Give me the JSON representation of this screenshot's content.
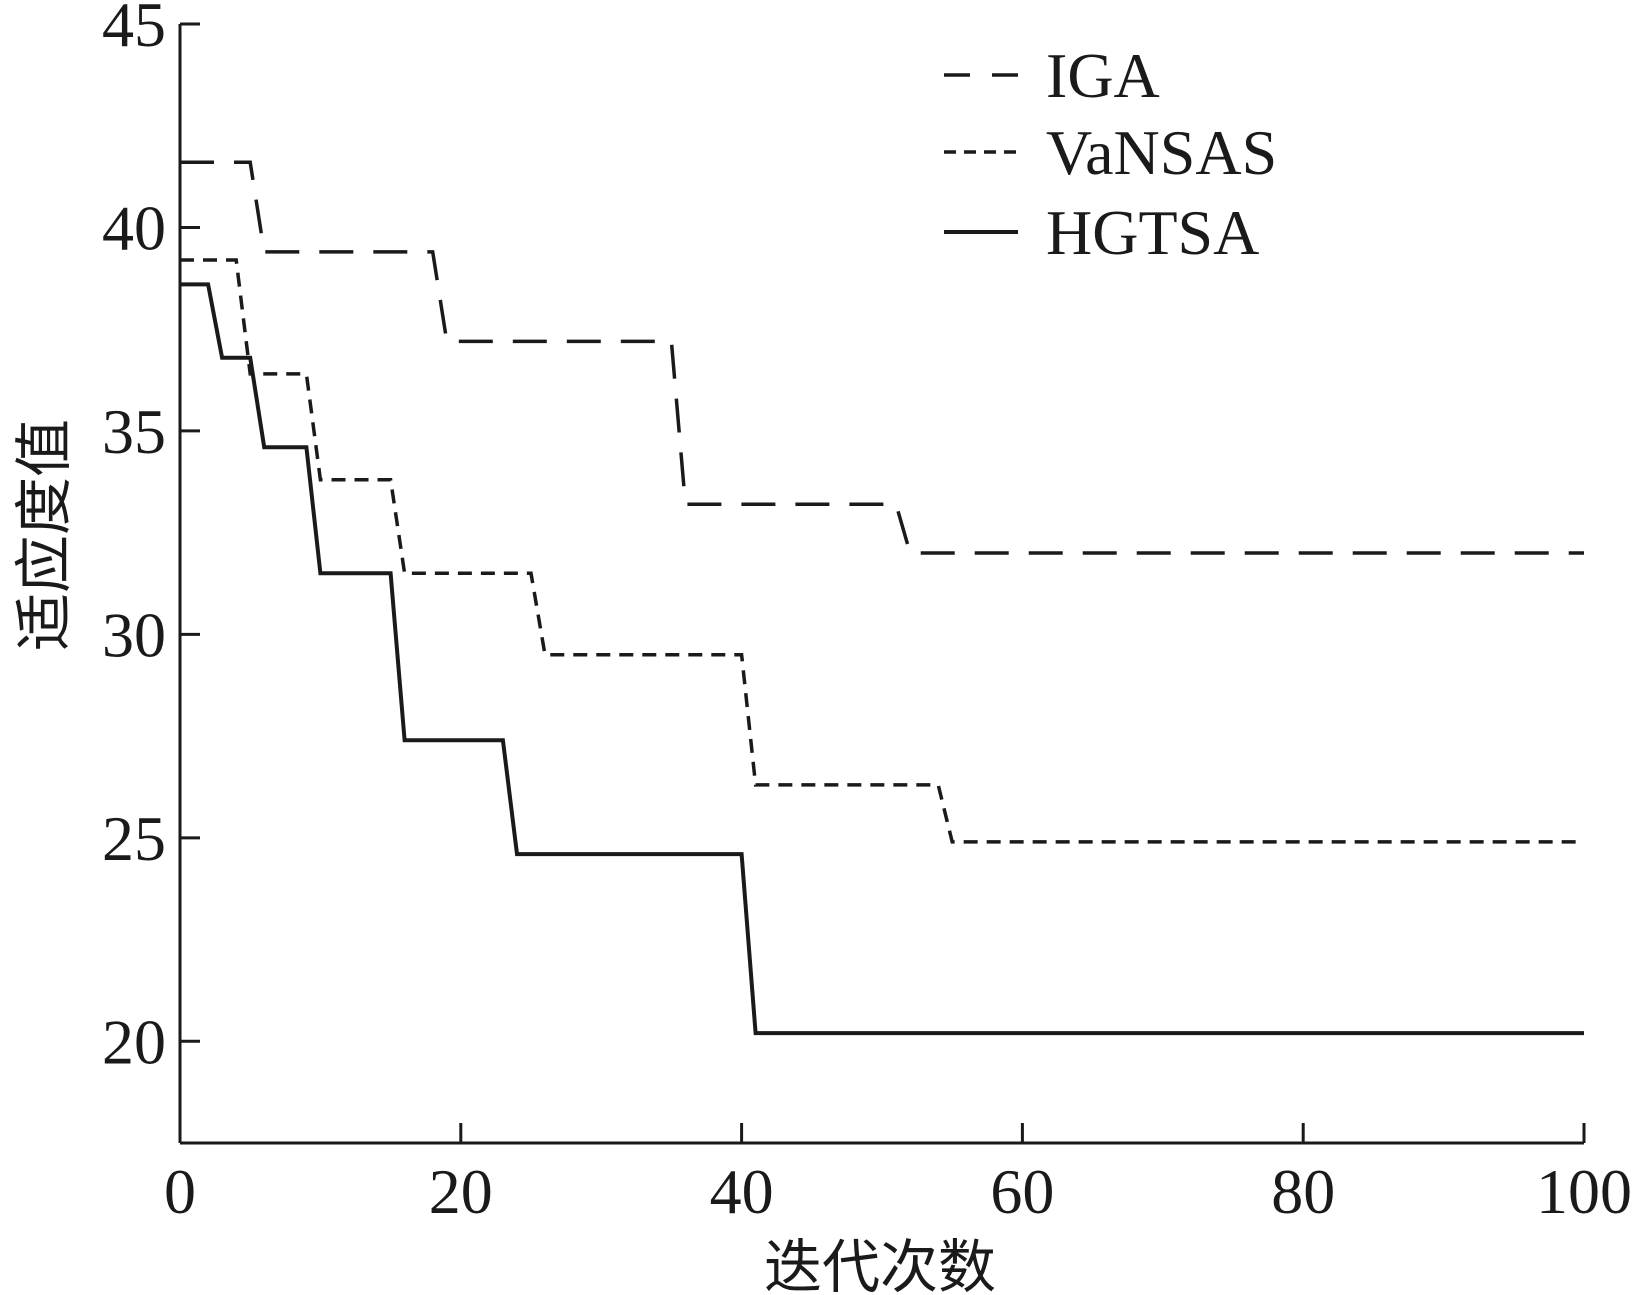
{
  "chart_data": {
    "type": "line",
    "xlabel": "迭代次数",
    "ylabel": "适应度值",
    "xlim": [
      0,
      100
    ],
    "ylim": [
      17.5,
      45
    ],
    "xticks": [
      0,
      20,
      40,
      60,
      80,
      100
    ],
    "yticks": [
      20,
      25,
      30,
      35,
      40,
      45
    ],
    "grid": false,
    "legend_position": "top-right",
    "series": [
      {
        "name": "IGA",
        "style": "dashed",
        "color": "#1a1a1a",
        "x": [
          0,
          5,
          6,
          18,
          19,
          35,
          36,
          51,
          52,
          100
        ],
        "y": [
          41.6,
          41.6,
          39.4,
          39.4,
          37.2,
          37.2,
          33.2,
          33.2,
          32.0,
          32.0
        ]
      },
      {
        "name": "VaNSAS",
        "style": "dotted",
        "color": "#1a1a1a",
        "x": [
          0,
          4,
          5,
          9,
          10,
          15,
          16,
          25,
          26,
          40,
          41,
          54,
          55,
          100
        ],
        "y": [
          39.2,
          39.2,
          36.4,
          36.4,
          33.8,
          33.8,
          31.5,
          31.5,
          29.5,
          29.5,
          26.3,
          26.3,
          24.9,
          24.9
        ]
      },
      {
        "name": "HGTSA",
        "style": "solid",
        "color": "#1a1a1a",
        "x": [
          0,
          2,
          3,
          5,
          6,
          9,
          10,
          15,
          16,
          23,
          24,
          40,
          41,
          100
        ],
        "y": [
          38.6,
          38.6,
          36.8,
          36.8,
          34.6,
          34.6,
          31.5,
          31.5,
          27.4,
          27.4,
          24.6,
          24.6,
          20.2,
          20.2
        ]
      }
    ]
  }
}
